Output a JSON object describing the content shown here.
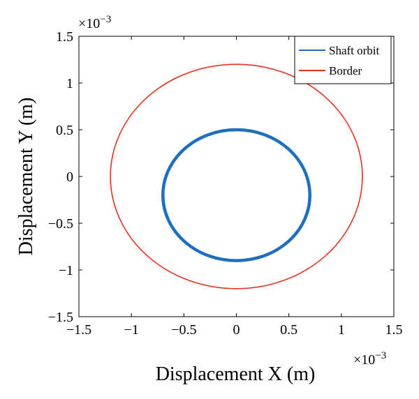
{
  "chart_data": {
    "type": "line",
    "title": "",
    "xlabel": "Displacement X (m)",
    "ylabel": "Displacement Y (m)",
    "x_exponent": "×10",
    "x_exponent_power": "−3",
    "y_exponent": "×10",
    "y_exponent_power": "−3",
    "xlim": [
      -1.5,
      1.5
    ],
    "ylim": [
      -1.5,
      1.5
    ],
    "scale_factor": 0.001,
    "xticks": [
      -1.5,
      -1,
      -0.5,
      0,
      0.5,
      1,
      1.5
    ],
    "yticks": [
      -1.5,
      -1,
      -0.5,
      0,
      0.5,
      1,
      1.5
    ],
    "xtick_labels": [
      "−1.5",
      "−1",
      "−0.5",
      "0",
      "0.5",
      "1",
      "1.5"
    ],
    "ytick_labels": [
      "−1.5",
      "−1",
      "−0.5",
      "0",
      "0.5",
      "1",
      "1.5"
    ],
    "grid": false,
    "legend_position": "top-right",
    "series": [
      {
        "name": "Shaft orbit",
        "color": "#1f6fbf",
        "shape": "ellipse",
        "center": [
          0,
          -0.2
        ],
        "radius_x": 0.7,
        "radius_y": 0.7
      },
      {
        "name": "Border",
        "color": "#e8331c",
        "shape": "circle",
        "center": [
          0,
          0
        ],
        "radius_x": 1.2,
        "radius_y": 1.2
      }
    ]
  }
}
